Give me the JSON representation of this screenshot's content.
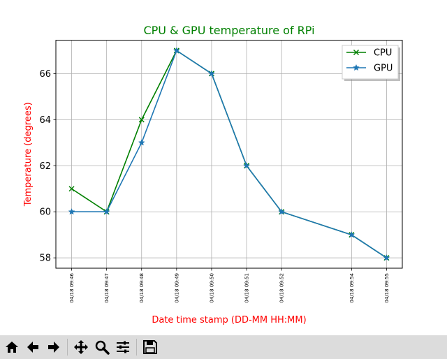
{
  "chart_data": {
    "type": "line",
    "title": "CPU & GPU temperature of RPi",
    "xlabel": "Date time stamp (DD-MM HH:MM)",
    "ylabel": "Temperature (degrees)",
    "x": [
      "04/18 09:46",
      "04/18 09:47",
      "04/18 09:48",
      "04/18 09:49",
      "04/18 09:50",
      "04/18 09:51",
      "04/18 09:52",
      "04/18 09:54",
      "04/18 09:55"
    ],
    "x_minutes": [
      46,
      47,
      48,
      49,
      50,
      51,
      52,
      54,
      55
    ],
    "series": [
      {
        "name": "CPU",
        "marker": "x",
        "color": "#008000",
        "values": [
          61,
          60,
          64,
          67,
          66,
          62,
          60,
          59,
          58
        ]
      },
      {
        "name": "GPU",
        "marker": "*",
        "color": "#1f77b4",
        "values": [
          60,
          60,
          63,
          67,
          66,
          62,
          60,
          59,
          58
        ]
      }
    ],
    "yticks": [
      58,
      60,
      62,
      64,
      66
    ],
    "ylim": [
      57.55,
      67.45
    ],
    "grid": true,
    "legend_position": "top-right",
    "title_color": "#008000",
    "label_color": "#ff0000"
  },
  "toolbar": {
    "buttons": [
      {
        "name": "home-button",
        "icon": "home-icon"
      },
      {
        "name": "back-button",
        "icon": "arrow-left-icon"
      },
      {
        "name": "forward-button",
        "icon": "arrow-right-icon"
      },
      {
        "name": "pan-button",
        "icon": "move-icon"
      },
      {
        "name": "zoom-button",
        "icon": "magnifier-icon"
      },
      {
        "name": "configure-subplots-button",
        "icon": "sliders-icon"
      },
      {
        "name": "save-button",
        "icon": "floppy-disk-icon"
      }
    ]
  }
}
